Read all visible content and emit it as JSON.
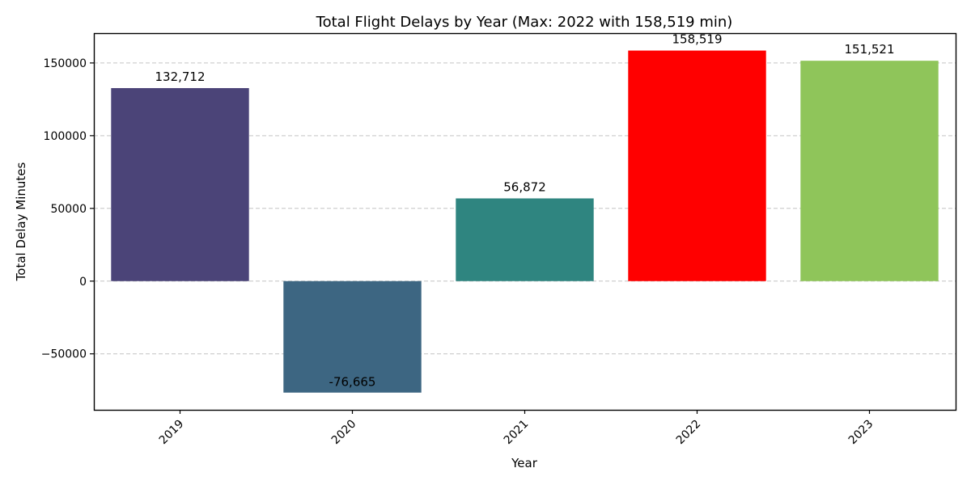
{
  "chart_data": {
    "type": "bar",
    "title": "Total Flight Delays by Year (Max: 2022 with 158,519 min)",
    "xlabel": "Year",
    "ylabel": "Total Delay Minutes",
    "categories": [
      "2019",
      "2020",
      "2021",
      "2022",
      "2023"
    ],
    "values": [
      132712,
      -76665,
      56872,
      158519,
      151521
    ],
    "value_labels": [
      "132,712",
      "-76,665",
      "56,872",
      "158,519",
      "151,521"
    ],
    "colors": [
      "#4b4478",
      "#3d6682",
      "#2f8580",
      "#ff0000",
      "#8fc55a"
    ],
    "highlight_color": "#ff0000",
    "ylim": [
      -88500,
      170500
    ],
    "yticks": [
      -50000,
      0,
      50000,
      100000,
      150000
    ],
    "ytick_labels": [
      "−50000",
      "0",
      "50000",
      "100000",
      "150000"
    ],
    "grid": "y-dashed",
    "legend": "none"
  }
}
